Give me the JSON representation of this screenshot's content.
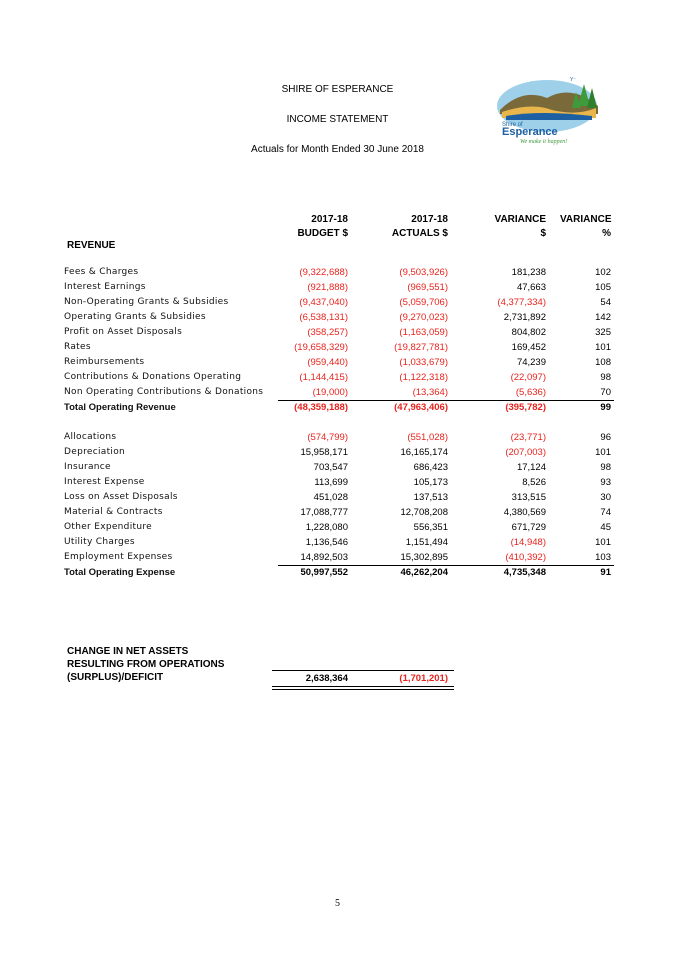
{
  "header": {
    "org": "SHIRE OF ESPERANCE",
    "statement": "INCOME STATEMENT",
    "period": "Actuals for Month Ended 30 June 2018"
  },
  "logo": {
    "name_line1": "Shire of",
    "name_line2": "Esperance",
    "tagline": "We make it happen!",
    "colors": {
      "blue": "#1d5fa3",
      "green": "#3f9a3b",
      "sand": "#e8b64a"
    }
  },
  "columns": [
    {
      "line1": "2017-18",
      "line2": "BUDGET $"
    },
    {
      "line1": "2017-18",
      "line2": "ACTUALS $"
    },
    {
      "line1": "VARIANCE",
      "line2": "$"
    },
    {
      "line1": "VARIANCE",
      "line2": "%"
    }
  ],
  "revenue": {
    "heading": "REVENUE",
    "rows": [
      {
        "label": "Fees & Charges",
        "budget": "(9,322,688)",
        "actuals": "(9,503,926)",
        "variance": "181,238",
        "pct": "102"
      },
      {
        "label": "Interest Earnings",
        "budget": "(921,888)",
        "actuals": "(969,551)",
        "variance": "47,663",
        "pct": "105"
      },
      {
        "label": "Non-Operating Grants & Subsidies",
        "budget": "(9,437,040)",
        "actuals": "(5,059,706)",
        "variance": "(4,377,334)",
        "pct": "54"
      },
      {
        "label": "Operating Grants & Subsidies",
        "budget": "(6,538,131)",
        "actuals": "(9,270,023)",
        "variance": "2,731,892",
        "pct": "142"
      },
      {
        "label": "Profit on Asset Disposals",
        "budget": "(358,257)",
        "actuals": "(1,163,059)",
        "variance": "804,802",
        "pct": "325"
      },
      {
        "label": "Rates",
        "budget": "(19,658,329)",
        "actuals": "(19,827,781)",
        "variance": "169,452",
        "pct": "101"
      },
      {
        "label": "Reimbursements",
        "budget": "(959,440)",
        "actuals": "(1,033,679)",
        "variance": "74,239",
        "pct": "108"
      },
      {
        "label": "Contributions & Donations Operating",
        "budget": "(1,144,415)",
        "actuals": "(1,122,318)",
        "variance": "(22,097)",
        "pct": "98"
      },
      {
        "label": "Non Operating Contributions & Donations",
        "budget": "(19,000)",
        "actuals": "(13,364)",
        "variance": "(5,636)",
        "pct": "70"
      }
    ],
    "total": {
      "label": "Total Operating Revenue",
      "budget": "(48,359,188)",
      "actuals": "(47,963,406)",
      "variance": "(395,782)",
      "pct": "99"
    }
  },
  "expense": {
    "rows": [
      {
        "label": "Allocations",
        "budget": "(574,799)",
        "actuals": "(551,028)",
        "variance": "(23,771)",
        "pct": "96"
      },
      {
        "label": "Depreciation",
        "budget": "15,958,171",
        "actuals": "16,165,174",
        "variance": "(207,003)",
        "pct": "101"
      },
      {
        "label": "Insurance",
        "budget": "703,547",
        "actuals": "686,423",
        "variance": "17,124",
        "pct": "98"
      },
      {
        "label": "Interest Expense",
        "budget": "113,699",
        "actuals": "105,173",
        "variance": "8,526",
        "pct": "93"
      },
      {
        "label": "Loss on Asset Disposals",
        "budget": "451,028",
        "actuals": "137,513",
        "variance": "313,515",
        "pct": "30"
      },
      {
        "label": "Material & Contracts",
        "budget": "17,088,777",
        "actuals": "12,708,208",
        "variance": "4,380,569",
        "pct": "74"
      },
      {
        "label": "Other Expenditure",
        "budget": "1,228,080",
        "actuals": "556,351",
        "variance": "671,729",
        "pct": "45"
      },
      {
        "label": "Utility Charges",
        "budget": "1,136,546",
        "actuals": "1,151,494",
        "variance": "(14,948)",
        "pct": "101"
      },
      {
        "label": "Employment Expenses",
        "budget": "14,892,503",
        "actuals": "15,302,895",
        "variance": "(410,392)",
        "pct": "103"
      }
    ],
    "total": {
      "label": "Total Operating Expense",
      "budget": "50,997,552",
      "actuals": "46,262,204",
      "variance": "4,735,348",
      "pct": "91"
    }
  },
  "change": {
    "line1": "CHANGE IN NET ASSETS",
    "line2": "RESULTING FROM OPERATIONS",
    "line3": "(SURPLUS)/DEFICIT",
    "budget": "2,638,364",
    "actuals": "(1,701,201)"
  },
  "page_number": "5"
}
